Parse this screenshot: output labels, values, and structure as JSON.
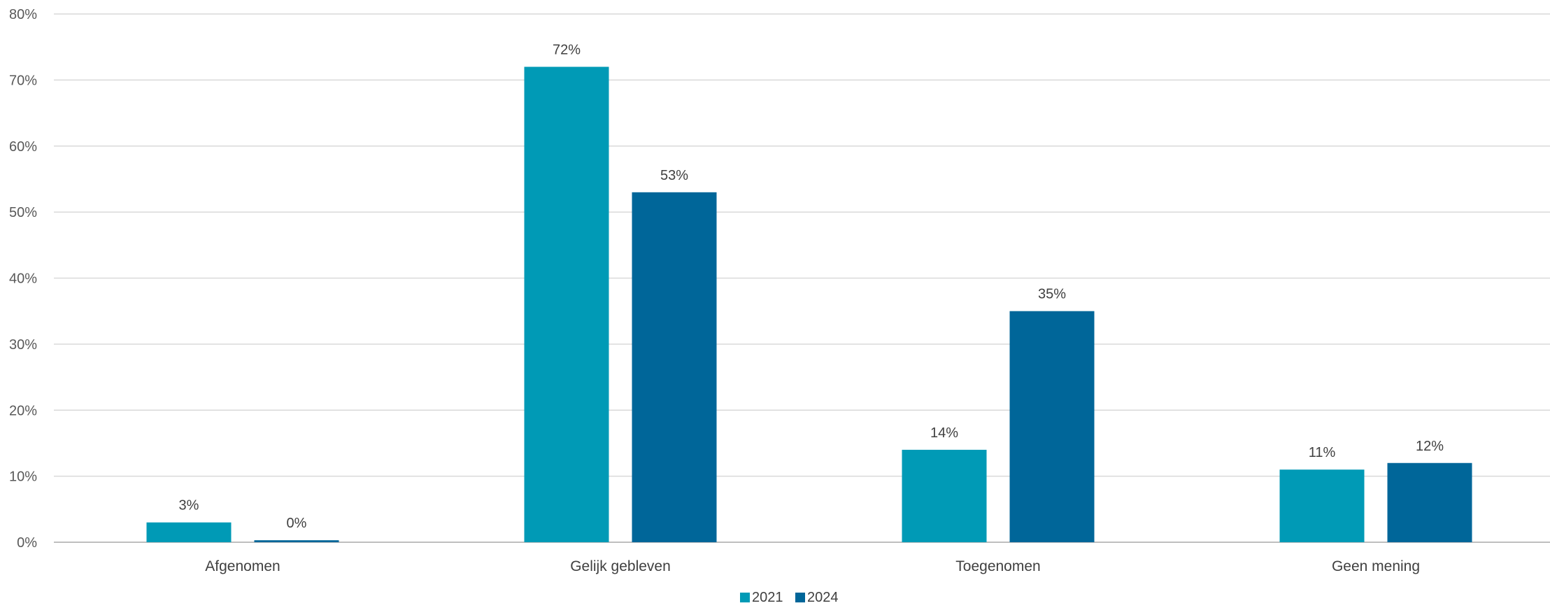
{
  "chart_data": {
    "type": "bar",
    "title": "",
    "xlabel": "",
    "ylabel": "",
    "categories": [
      "Afgenomen",
      "Gelijk gebleven",
      "Toegenomen",
      "Geen mening"
    ],
    "series": [
      {
        "name": "2021",
        "color": "#009AB6",
        "values": [
          3,
          72,
          14,
          11
        ],
        "labels": [
          "3%",
          "72%",
          "14%",
          "11%"
        ]
      },
      {
        "name": "2024",
        "color": "#006699",
        "values": [
          0.3,
          53,
          35,
          12
        ],
        "labels": [
          "0%",
          "53%",
          "35%",
          "12%"
        ]
      }
    ],
    "ylim": [
      0,
      80
    ],
    "yticks": [
      0,
      10,
      20,
      30,
      40,
      50,
      60,
      70,
      80
    ],
    "ytick_labels": [
      "0%",
      "10%",
      "20%",
      "30%",
      "40%",
      "50%",
      "60%",
      "70%",
      "80%"
    ],
    "grid": true,
    "legend_position": "bottom-center",
    "colors": {
      "grid": "#D9D9D9",
      "axis": "#BFBFBF"
    }
  }
}
